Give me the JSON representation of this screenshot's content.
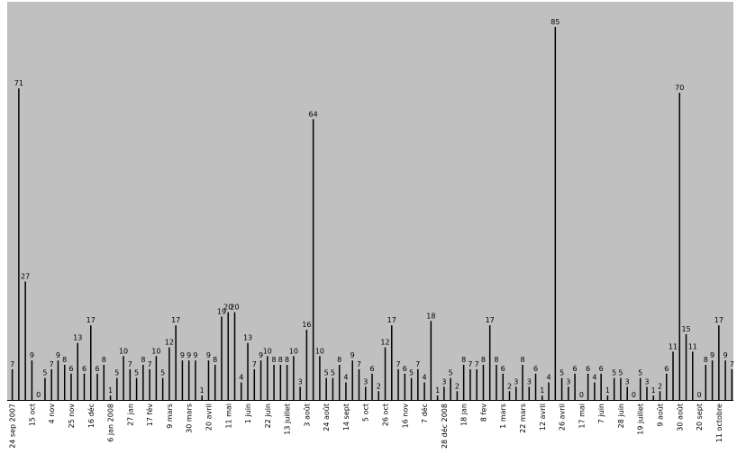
{
  "chart_data": {
    "type": "bar",
    "title": "",
    "xlabel": "",
    "ylabel": "",
    "ylim": [
      0,
      90
    ],
    "grid": false,
    "legend": "none",
    "colors": {
      "plot_background": "#c0c0c0",
      "bar": "#000000",
      "text": "#000000"
    },
    "values": [
      7,
      71,
      27,
      9,
      0,
      5,
      7,
      9,
      8,
      6,
      13,
      6,
      17,
      6,
      8,
      1,
      5,
      10,
      7,
      5,
      8,
      7,
      10,
      5,
      12,
      17,
      9,
      9,
      9,
      1,
      9,
      8,
      19,
      20,
      20,
      4,
      13,
      7,
      9,
      10,
      8,
      8,
      8,
      10,
      3,
      16,
      64,
      10,
      5,
      5,
      8,
      4,
      9,
      7,
      3,
      6,
      2,
      12,
      17,
      7,
      6,
      5,
      7,
      4,
      18,
      1,
      3,
      5,
      2,
      8,
      7,
      7,
      8,
      17,
      8,
      6,
      2,
      3,
      8,
      3,
      6,
      1,
      4,
      85,
      5,
      3,
      6,
      0,
      6,
      4,
      6,
      1,
      5,
      5,
      3,
      0,
      5,
      3,
      1,
      2,
      6,
      11,
      70,
      15,
      11,
      0,
      8,
      9,
      17,
      9,
      7
    ],
    "x_ticks": [
      {
        "index": 0,
        "label": "24 sep 2007"
      },
      {
        "index": 3,
        "label": "15 oct"
      },
      {
        "index": 6,
        "label": "4 nov"
      },
      {
        "index": 9,
        "label": "25 nov"
      },
      {
        "index": 12,
        "label": "16 déc"
      },
      {
        "index": 15,
        "label": "6 jan 2008"
      },
      {
        "index": 18,
        "label": "27 jan"
      },
      {
        "index": 21,
        "label": "17 fév"
      },
      {
        "index": 24,
        "label": "9 mars"
      },
      {
        "index": 27,
        "label": "30 mars"
      },
      {
        "index": 30,
        "label": "20 avril"
      },
      {
        "index": 33,
        "label": "11 mai"
      },
      {
        "index": 36,
        "label": "1 juin"
      },
      {
        "index": 39,
        "label": "22 juin"
      },
      {
        "index": 42,
        "label": "13 juillet"
      },
      {
        "index": 45,
        "label": "3 août"
      },
      {
        "index": 48,
        "label": "24 août"
      },
      {
        "index": 51,
        "label": "14 sept"
      },
      {
        "index": 54,
        "label": "5 oct"
      },
      {
        "index": 57,
        "label": "26 oct"
      },
      {
        "index": 60,
        "label": "16 nov"
      },
      {
        "index": 63,
        "label": "7 déc"
      },
      {
        "index": 66,
        "label": "28 déc 2008"
      },
      {
        "index": 69,
        "label": "18 jan"
      },
      {
        "index": 72,
        "label": "8 fev"
      },
      {
        "index": 75,
        "label": "1 mars"
      },
      {
        "index": 78,
        "label": "22 mars"
      },
      {
        "index": 81,
        "label": "12 avril"
      },
      {
        "index": 84,
        "label": "26 avril"
      },
      {
        "index": 87,
        "label": "17 mai"
      },
      {
        "index": 90,
        "label": "7 juin"
      },
      {
        "index": 93,
        "label": "28 juin"
      },
      {
        "index": 96,
        "label": "19 juillet"
      },
      {
        "index": 99,
        "label": "9 août"
      },
      {
        "index": 102,
        "label": "30 août"
      },
      {
        "index": 105,
        "label": "20 sept"
      },
      {
        "index": 108,
        "label": "11 octobre"
      }
    ]
  }
}
